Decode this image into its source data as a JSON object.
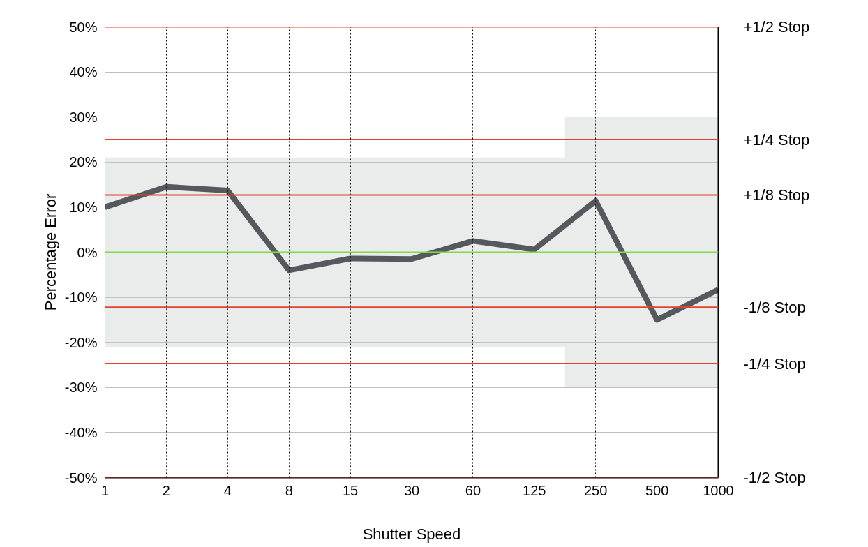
{
  "chart_data": {
    "type": "line",
    "xlabel": "Shutter Speed",
    "ylabel": "Percentage Error",
    "categories": [
      "1",
      "2",
      "4",
      "8",
      "15",
      "30",
      "60",
      "125",
      "250",
      "500",
      "1000"
    ],
    "series": [
      {
        "type": "line",
        "color": "#55595e",
        "lower": [
          -21,
          -21,
          -21,
          -21,
          -21,
          -21,
          -21,
          -21,
          -30,
          -30,
          -30
        ],
        "upper": [
          21,
          21,
          21,
          21,
          21,
          21,
          21,
          21,
          30,
          30,
          30
        ],
        "values": [
          10,
          14.5,
          13.7,
          -4,
          -1.4,
          -1.5,
          2.5,
          0.6,
          11.4,
          -15,
          -8.3
        ]
      }
    ],
    "ylim": [
      -50,
      50
    ],
    "yticks": [
      {
        "value": -50,
        "label": "-50%"
      },
      {
        "value": -40,
        "label": "-40%"
      },
      {
        "value": -30,
        "label": "-30%"
      },
      {
        "value": -20,
        "label": "-20%"
      },
      {
        "value": -10,
        "label": "-10%"
      },
      {
        "value": 0,
        "label": "0%"
      },
      {
        "value": 10,
        "label": "10%"
      },
      {
        "value": 20,
        "label": "20%"
      },
      {
        "value": 30,
        "label": "30%"
      },
      {
        "value": 40,
        "label": "40%"
      },
      {
        "value": 50,
        "label": "50%"
      }
    ],
    "ref_lines": [
      {
        "axis": "y",
        "value": 50,
        "label": "+1/2 Stop",
        "color": "#e0452c"
      },
      {
        "axis": "y",
        "value": 25,
        "label": "+1/4 Stop",
        "color": "#e0452c"
      },
      {
        "axis": "y",
        "value": 12.7,
        "label": "+1/8 Stop",
        "color": "#e0452c"
      },
      {
        "axis": "y",
        "value": 0,
        "color": "#7ddc4a"
      },
      {
        "axis": "y",
        "value": -12.2,
        "label": "-1/8 Stop",
        "color": "#e0452c"
      },
      {
        "axis": "y",
        "value": -24.7,
        "label": "-1/4 Stop",
        "color": "#e0452c"
      },
      {
        "axis": "y",
        "value": -50,
        "label": "-1/2 Stop",
        "color": "#e0452c"
      }
    ],
    "grid": true,
    "marker": "none",
    "line_style": "solid"
  }
}
